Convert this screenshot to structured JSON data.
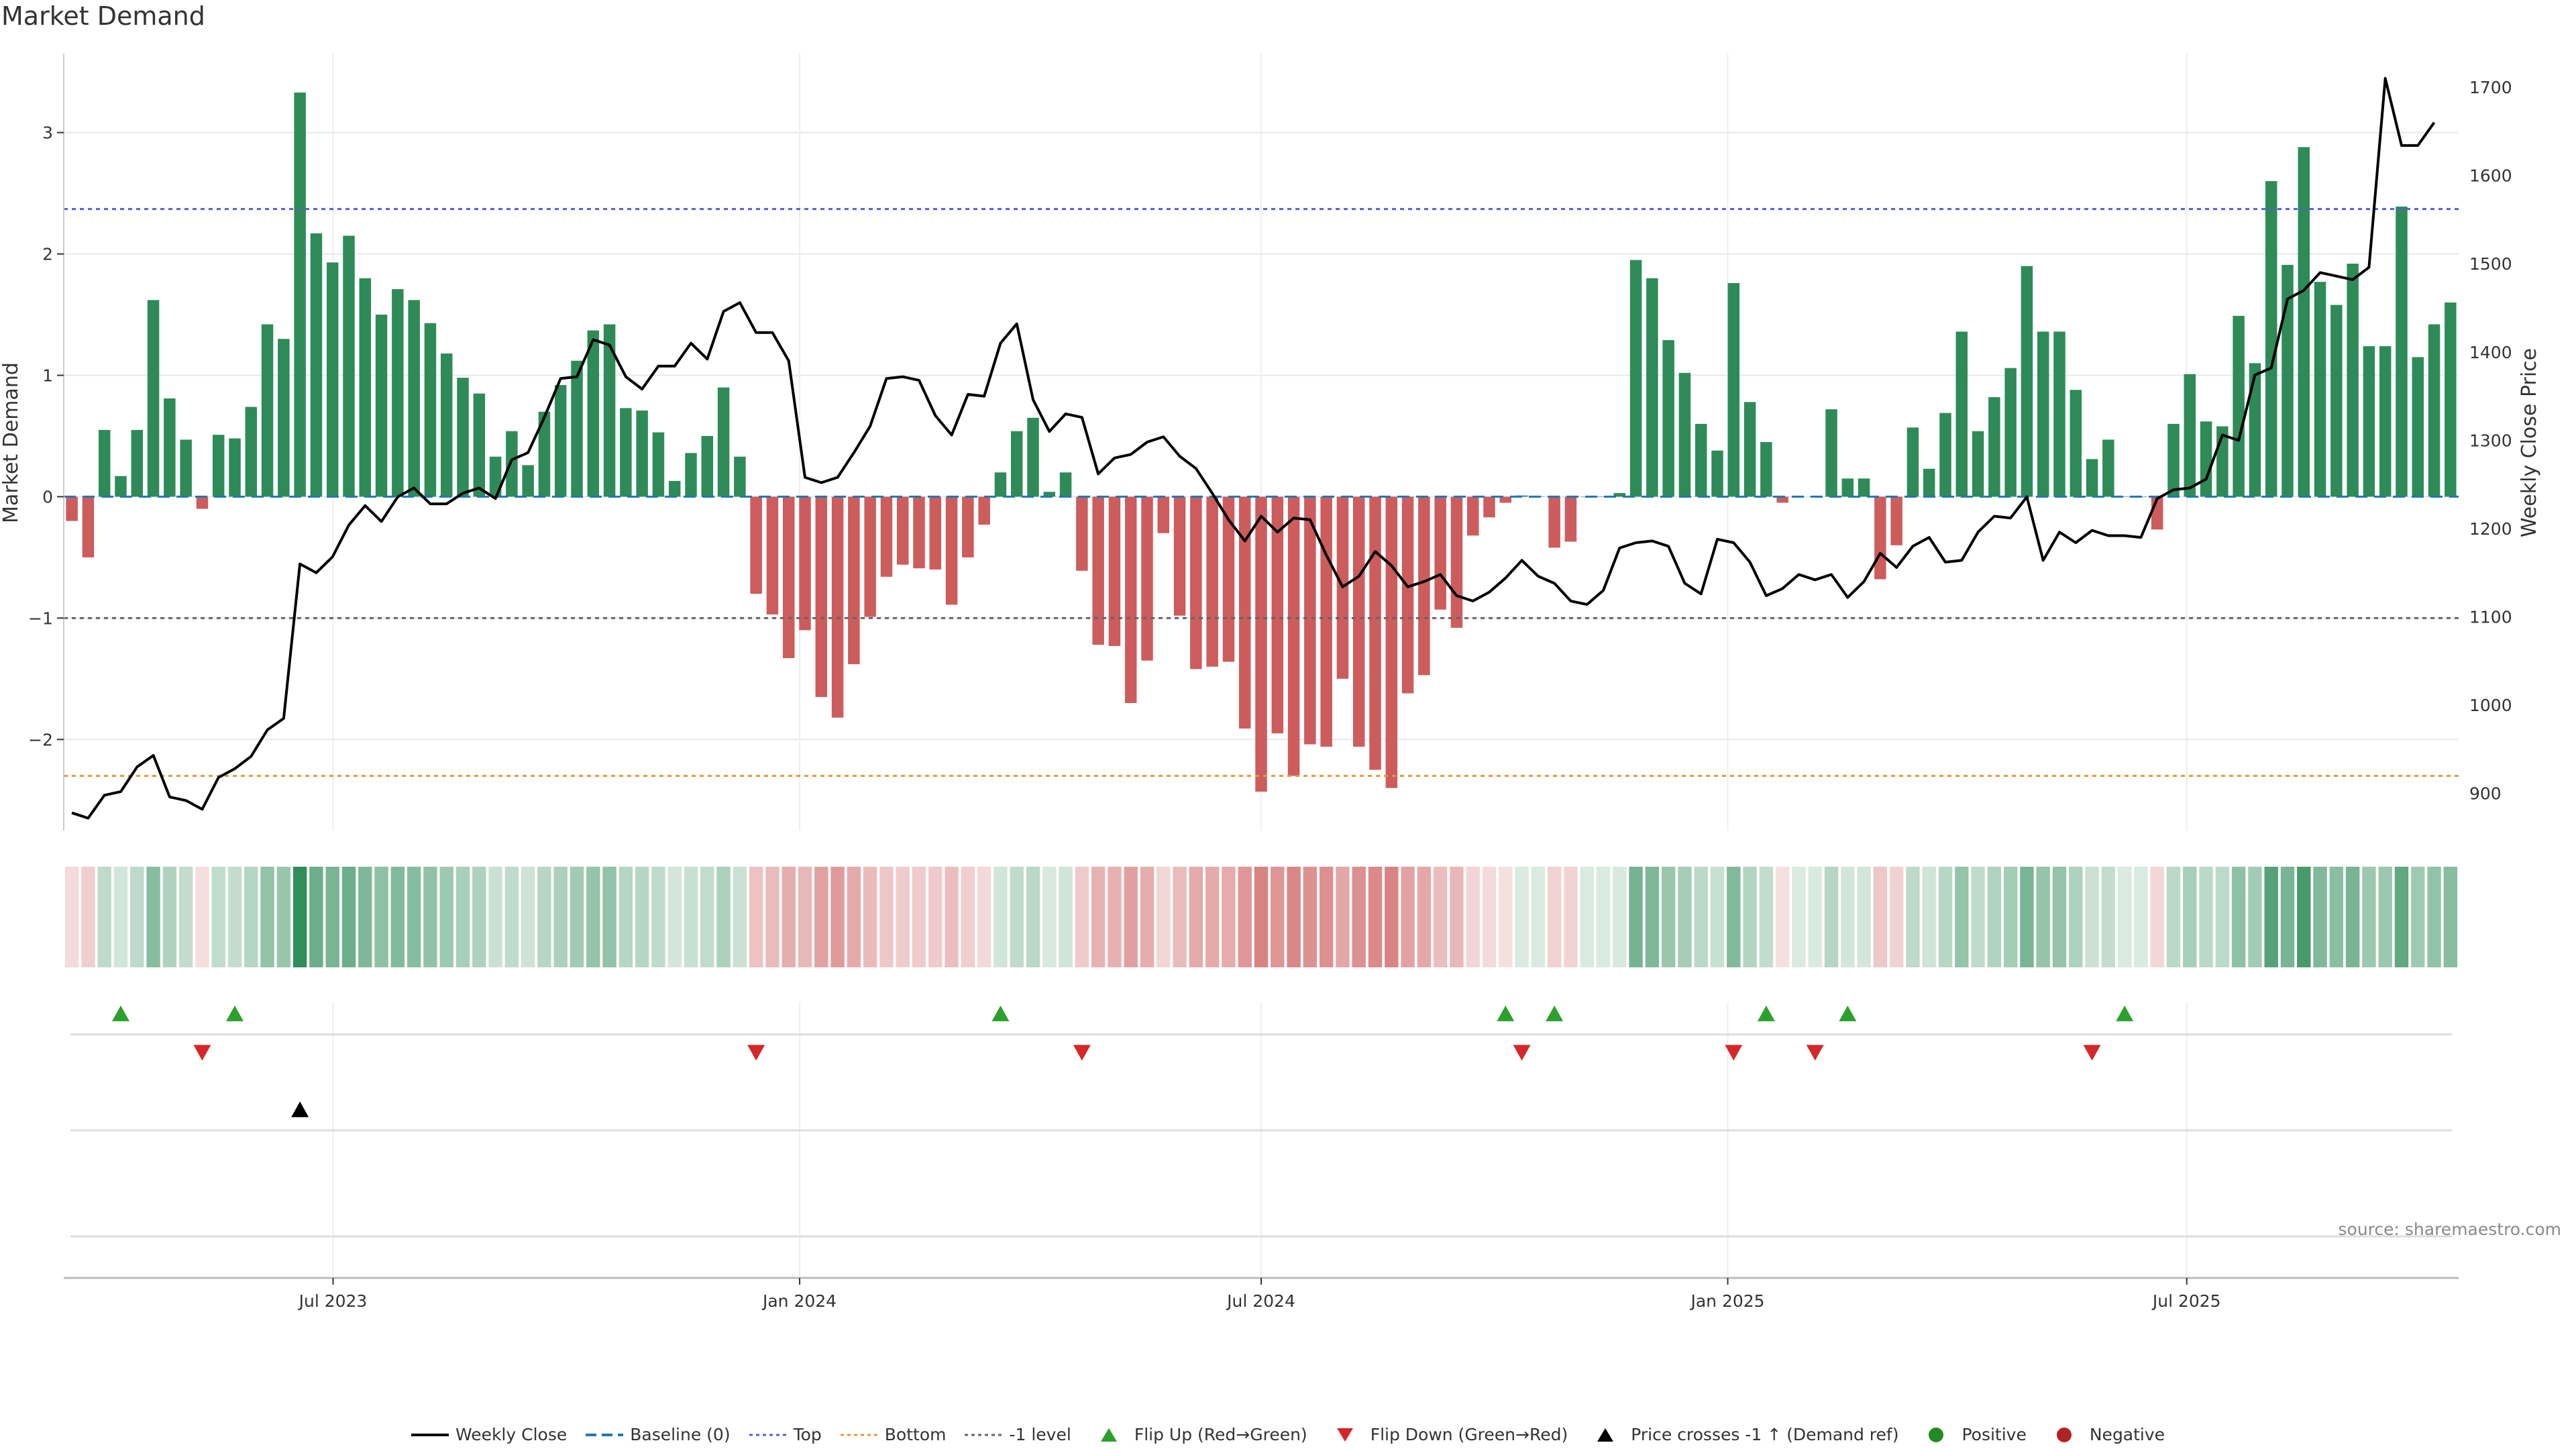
{
  "title": "Market Demand",
  "source": "source: sharemaestro.com",
  "chart_data": {
    "type": "bar",
    "title": "Market Demand",
    "ylabel": "Market Demand",
    "y2label": "Weekly Close Price",
    "ylim": [
      -2.75,
      3.65
    ],
    "y2lim": [
      858,
      1738
    ],
    "yticks": [
      -2,
      -1,
      0,
      1,
      2,
      3
    ],
    "y2ticks": [
      900,
      1000,
      1100,
      1200,
      1300,
      1400,
      1500,
      1600,
      1700
    ],
    "grid": true,
    "date_range": [
      "2023-03-20",
      "2025-10-13"
    ],
    "xticks": [
      {
        "date": "2023-07-01",
        "label": "Jul 2023"
      },
      {
        "date": "2024-01-01",
        "label": "Jan 2024"
      },
      {
        "date": "2024-07-01",
        "label": "Jul 2024"
      },
      {
        "date": "2025-01-01",
        "label": "Jan 2025"
      },
      {
        "date": "2025-07-01",
        "label": "Jul 2025"
      }
    ],
    "levels": {
      "top": 2.37,
      "bottom": -2.3,
      "minus_one": -1.0,
      "baseline": 0
    },
    "series": [
      {
        "name": "Market Demand",
        "values": [
          -0.2,
          -0.5,
          0.55,
          0.17,
          0.55,
          1.62,
          0.81,
          0.47,
          -0.1,
          0.51,
          0.48,
          0.74,
          1.42,
          1.3,
          3.33,
          2.17,
          1.93,
          2.15,
          1.8,
          1.5,
          1.71,
          1.62,
          1.43,
          1.18,
          0.98,
          0.85,
          0.33,
          0.54,
          0.26,
          0.7,
          0.92,
          1.12,
          1.37,
          1.42,
          0.73,
          0.71,
          0.53,
          0.13,
          0.36,
          0.5,
          0.9,
          0.33,
          -0.8,
          -0.97,
          -1.33,
          -1.1,
          -1.65,
          -1.82,
          -1.38,
          -0.99,
          -0.66,
          -0.56,
          -0.59,
          -0.6,
          -0.89,
          -0.5,
          -0.23,
          0.2,
          0.54,
          0.65,
          0.04,
          0.2,
          -0.61,
          -1.22,
          -1.23,
          -1.7,
          -1.35,
          -0.3,
          -0.98,
          -1.42,
          -1.4,
          -1.36,
          -1.91,
          -2.43,
          -1.95,
          -2.3,
          -2.04,
          -2.06,
          -1.5,
          -2.06,
          -2.25,
          -2.4,
          -1.62,
          -1.47,
          -0.93,
          -1.08,
          -0.32,
          -0.17,
          -0.05,
          0.01,
          0.0,
          -0.42,
          -0.37,
          0.0,
          0.0,
          0.03,
          1.95,
          1.8,
          1.29,
          1.02,
          0.6,
          0.38,
          1.76,
          0.78,
          0.45,
          -0.05,
          0.0,
          0.0,
          0.72,
          0.15,
          0.15,
          -0.68,
          -0.4,
          0.57,
          0.23,
          0.69,
          1.36,
          0.54,
          0.82,
          1.06,
          1.9,
          1.36,
          1.36,
          0.88,
          0.31,
          0.47,
          0.0,
          0.0,
          -0.27,
          0.6,
          1.01,
          0.62,
          0.58,
          1.49,
          1.1,
          2.6,
          1.91,
          2.88,
          1.77,
          1.58,
          1.92,
          1.24,
          1.24,
          2.39,
          1.15,
          1.42,
          1.6
        ]
      },
      {
        "name": "Weekly Close",
        "values": [
          878,
          872,
          898,
          902,
          930,
          943,
          896,
          892,
          882,
          918,
          928,
          942,
          972,
          985,
          1160,
          1150,
          1168,
          1204,
          1226,
          1208,
          1236,
          1246,
          1228,
          1228,
          1240,
          1246,
          1234,
          1278,
          1286,
          1326,
          1370,
          1372,
          1414,
          1408,
          1372,
          1358,
          1384,
          1384,
          1410,
          1392,
          1446,
          1456,
          1422,
          1422,
          1390,
          1258,
          1252,
          1258,
          1286,
          1316,
          1370,
          1372,
          1368,
          1328,
          1306,
          1352,
          1350,
          1410,
          1432,
          1346,
          1310,
          1330,
          1326,
          1262,
          1280,
          1284,
          1298,
          1304,
          1282,
          1268,
          1240,
          1210,
          1186,
          1214,
          1196,
          1212,
          1210,
          1170,
          1134,
          1146,
          1174,
          1158,
          1134,
          1140,
          1148,
          1124,
          1118,
          1128,
          1144,
          1164,
          1146,
          1138,
          1118,
          1114,
          1130,
          1178,
          1184,
          1186,
          1180,
          1138,
          1126,
          1188,
          1184,
          1162,
          1124,
          1132,
          1148,
          1142,
          1148,
          1122,
          1140,
          1172,
          1156,
          1180,
          1190,
          1162,
          1164,
          1196,
          1214,
          1212,
          1236,
          1164,
          1196,
          1184,
          1198,
          1192,
          1192,
          1190,
          1234,
          1244,
          1246,
          1256,
          1306,
          1300,
          1374,
          1382,
          1460,
          1470,
          1490,
          1486,
          1482,
          1496,
          1710,
          1634,
          1634,
          1660
        ]
      }
    ],
    "flip_up": [
      3,
      10,
      57,
      88,
      91,
      104,
      109,
      126
    ],
    "flip_down": [
      8,
      42,
      62,
      89,
      102,
      107,
      124
    ],
    "price_cross": [
      14
    ],
    "legend": [
      "Weekly Close",
      "Baseline (0)",
      "Top",
      "Bottom",
      "-1 level",
      "Flip Up (Red→Green)",
      "Flip Down (Green→Red)",
      "Price crosses -1 ↑ (Demand ref)",
      "Positive",
      "Negative"
    ],
    "colors": {
      "positive": "#2e8b57",
      "negative": "#cd5c5c",
      "price": "#000000",
      "baseline": "#1f77b4",
      "top": "#5b5bd6",
      "bottom": "#e09a3a",
      "minus_one": "#666666",
      "flip_up": "#2ca02c",
      "flip_down": "#d62728",
      "cross": "#000000",
      "positive_dot": "#228b22",
      "negative_dot": "#b22222"
    }
  }
}
